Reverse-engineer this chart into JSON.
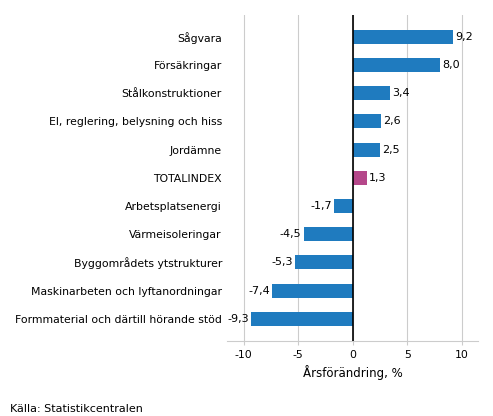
{
  "categories": [
    "Formmaterial och därtill hörande stöd",
    "Maskinarbeten och lyftanordningar",
    "Byggområdets ytstrukturer",
    "Värmeisoleringar",
    "Arbetsplatsenergi",
    "TOTALINDEX",
    "Jordämne",
    "El, reglering, belysning och hiss",
    "Stålkonstruktioner",
    "Försäkringar",
    "Sågvara"
  ],
  "values": [
    -9.3,
    -7.4,
    -5.3,
    -4.5,
    -1.7,
    1.3,
    2.5,
    2.6,
    3.4,
    8.0,
    9.2
  ],
  "colors": [
    "#1f7bbf",
    "#1f7bbf",
    "#1f7bbf",
    "#1f7bbf",
    "#1f7bbf",
    "#b5478a",
    "#1f7bbf",
    "#1f7bbf",
    "#1f7bbf",
    "#1f7bbf",
    "#1f7bbf"
  ],
  "xlabel": "Årsförändring, %",
  "xlim": [
    -11.5,
    11.5
  ],
  "xticks": [
    -10,
    -5,
    0,
    5,
    10
  ],
  "source_text": "Källa: Statistikcentralen",
  "bar_height": 0.5,
  "grid_color": "#cccccc",
  "label_fontsize": 7.8,
  "value_fontsize": 8.0,
  "xlabel_fontsize": 8.5,
  "source_fontsize": 8.0
}
